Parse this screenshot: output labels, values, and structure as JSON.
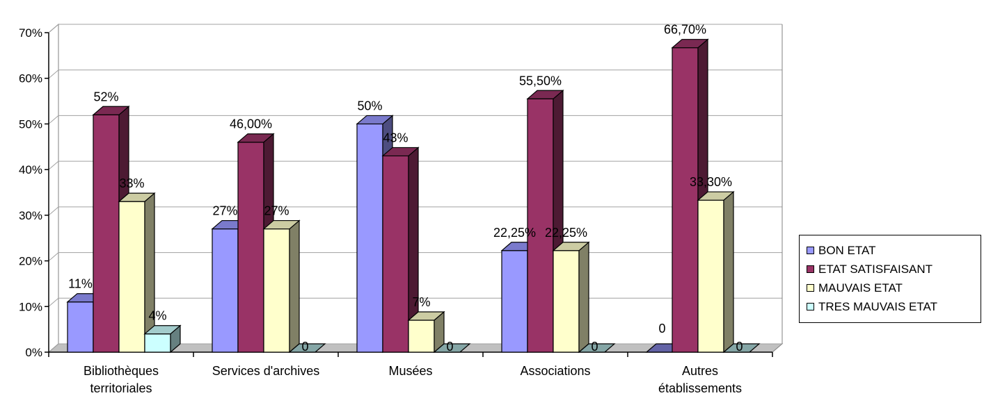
{
  "chart_data": {
    "type": "bar",
    "categories": [
      [
        "Bibliothèques",
        "territoriales"
      ],
      [
        "Services d'archives"
      ],
      [
        "Musées"
      ],
      [
        "Associations"
      ],
      [
        "Autres",
        "établissements"
      ]
    ],
    "series": [
      {
        "name": "BON ETAT",
        "color": "#9999ff",
        "values": [
          11,
          27,
          50,
          22.25,
          0
        ],
        "labels": [
          "11%",
          "27%",
          "50%",
          "22,25%",
          "0"
        ]
      },
      {
        "name": "ETAT SATISFAISANT",
        "color": "#993366",
        "values": [
          52,
          46,
          43,
          55.5,
          66.7
        ],
        "labels": [
          "52%",
          "46,00%",
          "43%",
          "55,50%",
          "66,70%"
        ]
      },
      {
        "name": "MAUVAIS ETAT",
        "color": "#ffffcc",
        "values": [
          33,
          27,
          7,
          22.25,
          33.3
        ],
        "labels": [
          "33%",
          "27%",
          "7%",
          "22,25%",
          "33,30%"
        ]
      },
      {
        "name": "TRES MAUVAIS ETAT",
        "color": "#ccffff",
        "values": [
          4,
          0,
          0,
          0,
          0
        ],
        "labels": [
          "4%",
          "0",
          "0",
          "0",
          "0"
        ]
      }
    ],
    "y_ticks": [
      "0%",
      "10%",
      "20%",
      "30%",
      "40%",
      "50%",
      "60%",
      "70%"
    ],
    "ylim": [
      0,
      70
    ],
    "grid": true,
    "legend_position": "right",
    "title": "",
    "xlabel": "",
    "ylabel": ""
  }
}
